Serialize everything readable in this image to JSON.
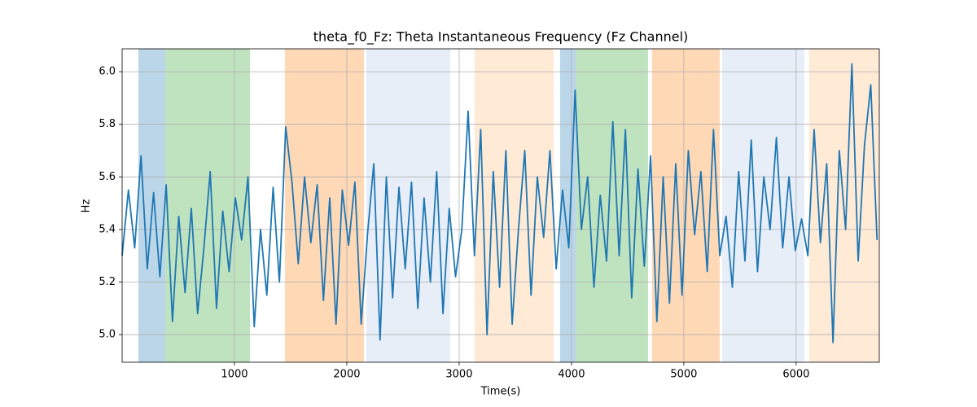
{
  "chart_data": {
    "type": "line",
    "title": "theta_f0_Fz: Theta Instantaneous Frequency (Fz Channel)",
    "xlabel": "Time(s)",
    "ylabel": "Hz",
    "color": "#1f77b4",
    "grid": true,
    "xlim": [
      0,
      6740
    ],
    "ylim": [
      4.895,
      6.087
    ],
    "xticks": [
      1000,
      2000,
      3000,
      4000,
      5000,
      6000
    ],
    "yticks": [
      {
        "value": 5,
        "label": "5.0"
      },
      5.2,
      5.4,
      5.6,
      5.8,
      {
        "value": 6,
        "label": "6.0"
      }
    ],
    "span_alpha": 0.3,
    "spans": [
      {
        "start": 145,
        "end": 385,
        "color": "#1f77b4"
      },
      {
        "start": 385,
        "end": 1138,
        "color": "#2ca02c"
      },
      {
        "start": 1449,
        "end": 2152,
        "color": "#ff7f0e"
      },
      {
        "start": 2174,
        "end": 2920,
        "color": "#aec7e8"
      },
      {
        "start": 3138,
        "end": 3841,
        "color": "#ffbb78"
      },
      {
        "start": 3899,
        "end": 4043,
        "color": "#1f77b4"
      },
      {
        "start": 4043,
        "end": 4681,
        "color": "#2ca02c"
      },
      {
        "start": 4717,
        "end": 5319,
        "color": "#ff7f0e"
      },
      {
        "start": 5341,
        "end": 6072,
        "color": "#aec7e8"
      },
      {
        "start": 6116,
        "end": 6740,
        "color": "#ffbb78"
      }
    ],
    "x": [
      0,
      56,
      112,
      168,
      224,
      280,
      336,
      392,
      448,
      504,
      560,
      616,
      672,
      728,
      784,
      840,
      896,
      952,
      1008,
      1064,
      1120,
      1176,
      1232,
      1288,
      1344,
      1400,
      1456,
      1512,
      1568,
      1624,
      1680,
      1736,
      1792,
      1848,
      1904,
      1960,
      2016,
      2072,
      2128,
      2184,
      2240,
      2296,
      2352,
      2408,
      2464,
      2520,
      2576,
      2632,
      2688,
      2744,
      2800,
      2856,
      2912,
      2968,
      3024,
      3080,
      3136,
      3192,
      3248,
      3304,
      3360,
      3416,
      3472,
      3528,
      3584,
      3640,
      3696,
      3752,
      3808,
      3864,
      3920,
      3976,
      4032,
      4088,
      4144,
      4200,
      4256,
      4312,
      4368,
      4424,
      4480,
      4536,
      4592,
      4648,
      4704,
      4760,
      4816,
      4872,
      4928,
      4984,
      5040,
      5096,
      5152,
      5208,
      5264,
      5320,
      5376,
      5432,
      5488,
      5544,
      5600,
      5656,
      5712,
      5768,
      5824,
      5880,
      5936,
      5992,
      6048,
      6104,
      6160,
      6216,
      6272,
      6328,
      6384,
      6440,
      6496,
      6552,
      6608,
      6664,
      6720
    ],
    "values": [
      5.3,
      5.55,
      5.33,
      5.68,
      5.25,
      5.54,
      5.22,
      5.57,
      5.05,
      5.45,
      5.16,
      5.48,
      5.08,
      5.33,
      5.62,
      5.1,
      5.47,
      5.24,
      5.52,
      5.36,
      5.6,
      5.03,
      5.4,
      5.15,
      5.56,
      5.2,
      5.79,
      5.58,
      5.27,
      5.6,
      5.35,
      5.57,
      5.13,
      5.52,
      5.04,
      5.55,
      5.34,
      5.58,
      5.04,
      5.38,
      5.65,
      4.98,
      5.6,
      5.14,
      5.56,
      5.25,
      5.58,
      5.1,
      5.52,
      5.2,
      5.62,
      5.08,
      5.48,
      5.22,
      5.4,
      5.85,
      5.3,
      5.78,
      5.0,
      5.62,
      5.18,
      5.7,
      5.04,
      5.4,
      5.7,
      5.15,
      5.6,
      5.37,
      5.7,
      5.25,
      5.55,
      5.33,
      5.93,
      5.4,
      5.6,
      5.18,
      5.53,
      5.28,
      5.81,
      5.3,
      5.78,
      5.14,
      5.63,
      5.26,
      5.68,
      5.05,
      5.6,
      5.12,
      5.65,
      5.15,
      5.7,
      5.38,
      5.62,
      5.24,
      5.78,
      5.3,
      5.45,
      5.18,
      5.62,
      5.28,
      5.74,
      5.24,
      5.6,
      5.4,
      5.75,
      5.33,
      5.6,
      5.32,
      5.44,
      5.3,
      5.78,
      5.35,
      5.65,
      4.97,
      5.7,
      5.4,
      6.03,
      5.28,
      5.72,
      5.95,
      5.36
    ]
  }
}
